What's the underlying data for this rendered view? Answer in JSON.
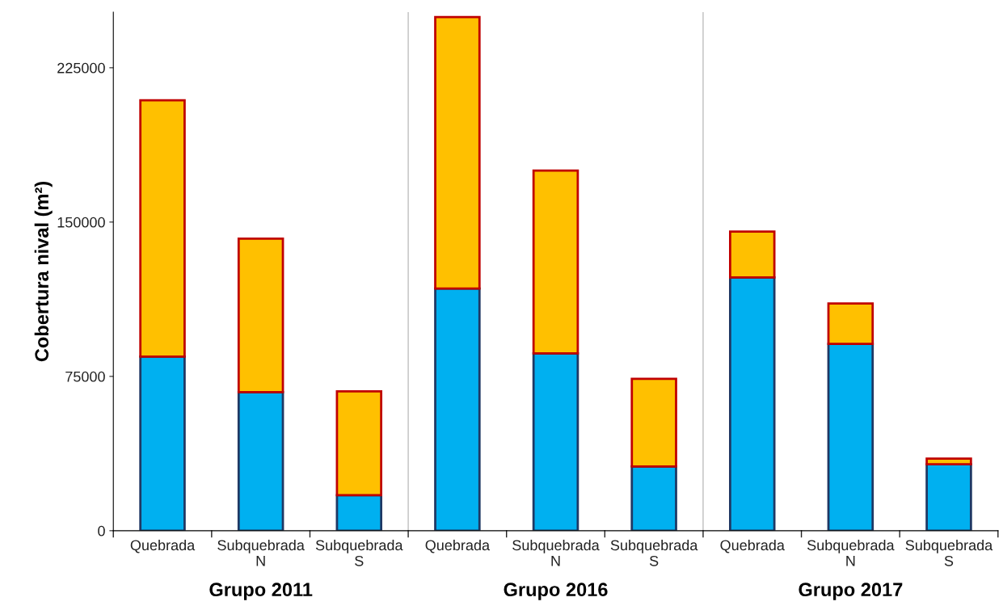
{
  "chart_data": {
    "type": "bar",
    "stacked": true,
    "ylabel": "Cobertura nival (m²)",
    "categories": [
      "Quebrada",
      "Subquebrada\nN",
      "Subquebrada\nS",
      "Quebrada",
      "Subquebrada\nN",
      "Subquebrada\nS",
      "Quebrada",
      "Subquebrada\nN",
      "Subquebrada\nS"
    ],
    "series": [
      {
        "color": "#00b0f0",
        "values": [
          84600,
          67300,
          17300,
          117700,
          86200,
          31200,
          123100,
          90800,
          32300
        ]
      },
      {
        "color": "#ffc000",
        "values": [
          124600,
          74600,
          50400,
          131900,
          88800,
          42600,
          22300,
          19600,
          2700
        ]
      }
    ],
    "annotations": [
      "Grupo 2011",
      "Grupo 2016",
      "Grupo 2017"
    ],
    "ylim": [
      0,
      252000
    ],
    "yticks": [
      0,
      75000,
      150000,
      225000
    ],
    "grid": false,
    "legend": false
  }
}
